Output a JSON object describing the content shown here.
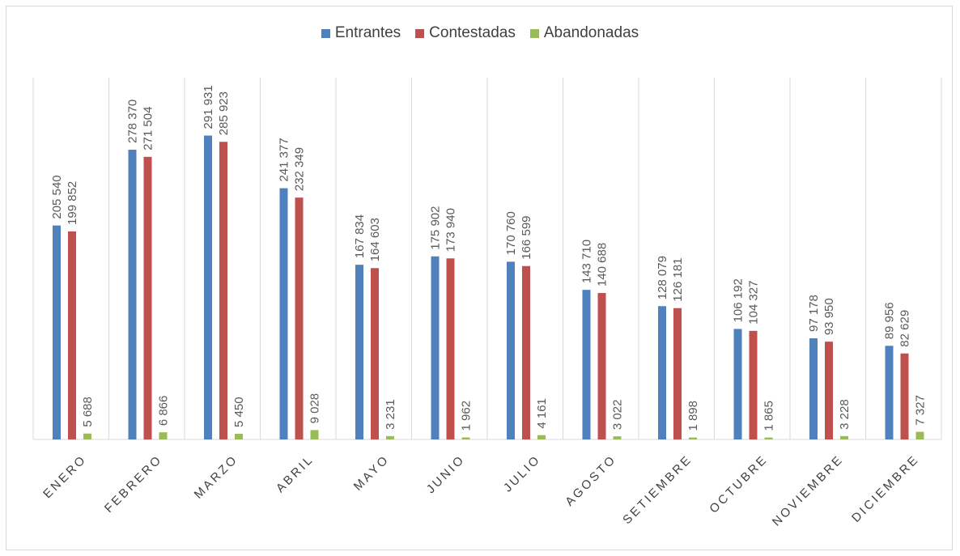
{
  "chart_data": {
    "type": "bar",
    "title": "",
    "xlabel": "",
    "ylabel": "",
    "ylim": [
      0,
      320000
    ],
    "grid": "vertical category separators",
    "legend_position": "top",
    "categories": [
      "ENERO",
      "FEBRERO",
      "MARZO",
      "ABRIL",
      "MAYO",
      "JUNIO",
      "JULIO",
      "AGOSTO",
      "SETIEMBRE",
      "OCTUBRE",
      "NOVIEMBRE",
      "DICIEMBRE"
    ],
    "series": [
      {
        "name": "Entrantes",
        "color": "#4F81BD",
        "values": [
          205540,
          278370,
          291931,
          241377,
          167834,
          175902,
          170760,
          143710,
          128079,
          106192,
          97178,
          89956
        ],
        "labels": [
          "205 540",
          "278 370",
          "291 931",
          "241 377",
          "167 834",
          "175 902",
          "170 760",
          "143 710",
          "128 079",
          "106 192",
          "97 178",
          "89 956"
        ]
      },
      {
        "name": "Contestadas",
        "color": "#C0504D",
        "values": [
          199852,
          271504,
          285923,
          232349,
          164603,
          173940,
          166599,
          140688,
          126181,
          104327,
          93950,
          82629
        ],
        "labels": [
          "199 852",
          "271 504",
          "285 923",
          "232 349",
          "164 603",
          "173 940",
          "166 599",
          "140 688",
          "126 181",
          "104 327",
          "93 950",
          "82 629"
        ]
      },
      {
        "name": "Abandonadas",
        "color": "#9BBB59",
        "values": [
          5688,
          6866,
          5450,
          9028,
          3231,
          1962,
          4161,
          3022,
          1898,
          1865,
          3228,
          7327
        ],
        "labels": [
          "5 688",
          "6 866",
          "5 450",
          "9 028",
          "3 231",
          "1 962",
          "4 161",
          "3 022",
          "1 898",
          "1 865",
          "3 228",
          "7 327"
        ]
      }
    ]
  }
}
